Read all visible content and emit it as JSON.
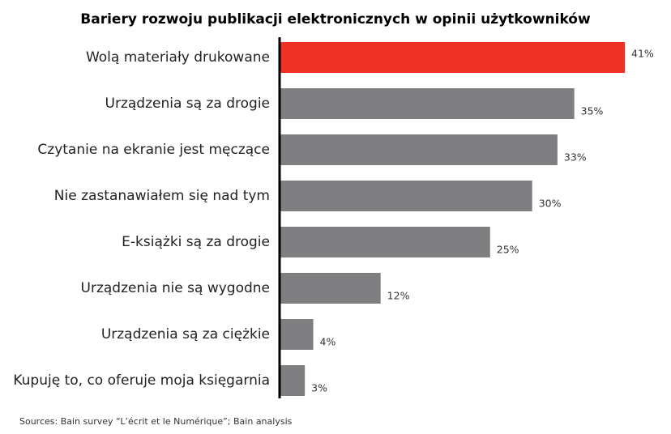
{
  "chart_data": {
    "type": "bar",
    "orientation": "horizontal",
    "title": "Bariery rozwoju publikacji elektronicznych w opinii użytkowników",
    "categories": [
      "Wolą materiały drukowane",
      "Urządzenia są za drogie",
      "Czytanie na ekranie jest męczące",
      "Nie zastanawiałem się nad tym",
      "E-książki są za drogie",
      "Urządzenia nie są wygodne",
      "Urządzenia są za ciężkie",
      "Kupuję to, co oferuje moja księgarnia"
    ],
    "values": [
      41,
      35,
      33,
      30,
      25,
      12,
      4,
      3
    ],
    "value_labels": [
      "41%",
      "35%",
      "33%",
      "30%",
      "25%",
      "12%",
      "4%",
      "3%"
    ],
    "xlim": [
      0,
      41
    ],
    "grid": false,
    "highlight_index": 0,
    "colors": {
      "highlight": "#EE3124",
      "bar": "#7F7F82",
      "axis": "#000000"
    },
    "source": "Sources: Bain survey “L’écrit et le Numérique”; Bain analysis"
  }
}
